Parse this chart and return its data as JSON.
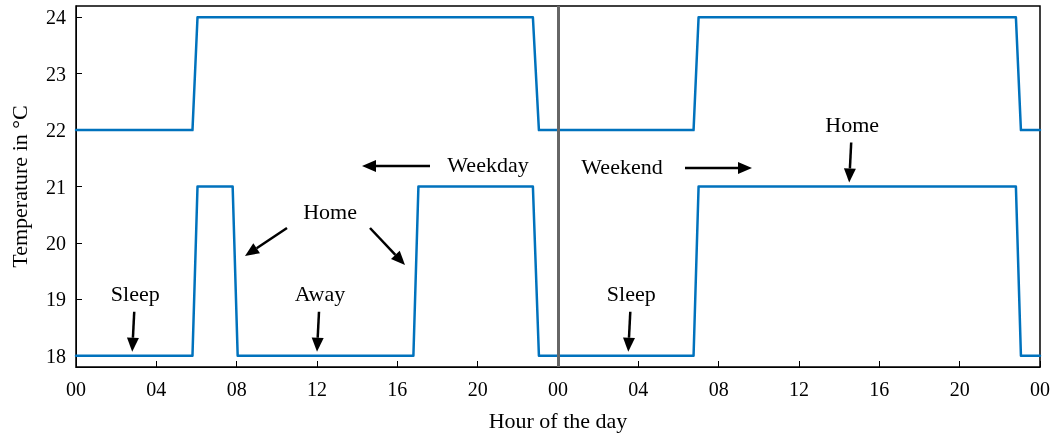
{
  "chart_data": {
    "type": "line",
    "xlabel": "Hour of the day",
    "ylabel": "Temperature in °C",
    "xlim": [
      0,
      48
    ],
    "ylim": [
      17.8,
      24.2
    ],
    "xticks": [
      {
        "value": 0,
        "label": "00"
      },
      {
        "value": 4,
        "label": "04"
      },
      {
        "value": 8,
        "label": "08"
      },
      {
        "value": 12,
        "label": "12"
      },
      {
        "value": 16,
        "label": "16"
      },
      {
        "value": 20,
        "label": "20"
      },
      {
        "value": 24,
        "label": "00"
      },
      {
        "value": 28,
        "label": "04"
      },
      {
        "value": 32,
        "label": "08"
      },
      {
        "value": 36,
        "label": "12"
      },
      {
        "value": 40,
        "label": "16"
      },
      {
        "value": 44,
        "label": "20"
      },
      {
        "value": 48,
        "label": "00"
      }
    ],
    "yticks": [
      18,
      19,
      20,
      21,
      22,
      23,
      24
    ],
    "series": [
      {
        "color": "#0072bd",
        "x": [
          0,
          5.8,
          6.05,
          22.75,
          23.05,
          30.75,
          31,
          46.8,
          47.05,
          48
        ],
        "values": [
          22,
          22,
          24,
          24,
          22,
          22,
          24,
          24,
          22,
          22
        ]
      },
      {
        "color": "#0072bd",
        "x": [
          0,
          5.8,
          6.05,
          7.8,
          8.05,
          16.8,
          17.05,
          22.75,
          23.05,
          30.75,
          31,
          46.8,
          47.05,
          48
        ],
        "values": [
          18,
          18,
          21,
          21,
          18,
          18,
          21,
          21,
          18,
          18,
          21,
          21,
          18,
          18
        ]
      }
    ],
    "ref_lines": [
      {
        "axis": "x",
        "value": 24,
        "color": "#666666"
      }
    ],
    "annotations": [
      {
        "text": "Sleep",
        "x": 2.8,
        "y": 18
      },
      {
        "text": "Away",
        "x": 12,
        "y": 18
      },
      "Home",
      "Weekday",
      "Weekend",
      {
        "text": "Sleep",
        "x": 27.5,
        "y": 18
      },
      {
        "text": "Home",
        "x": 38.5,
        "y": 21
      }
    ],
    "grid": false,
    "marker": "none",
    "line_style": "solid"
  }
}
